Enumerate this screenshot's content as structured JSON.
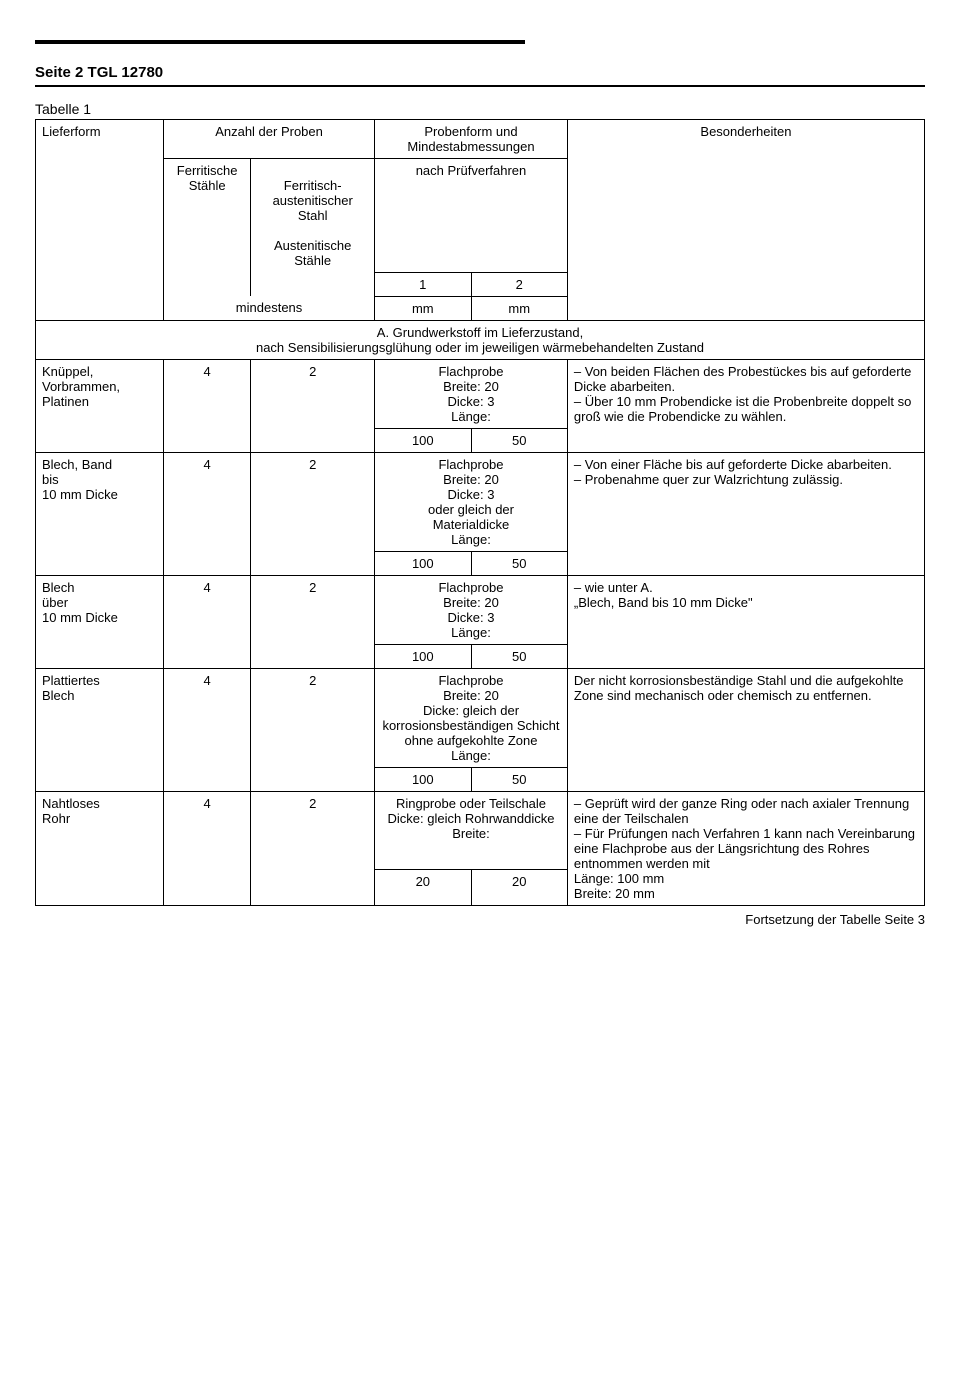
{
  "header": "Seite 2 TGL 12780",
  "table_title": "Tabelle 1",
  "columns": {
    "lieferform": "Lieferform",
    "anzahl": "Anzahl der Proben",
    "probenform": "Probenform und Mindestabmessungen",
    "besonderheiten": "Besonderheiten"
  },
  "subheader": {
    "ferritische": "Ferritische Stähle",
    "ferr_aust": "Ferritisch-austenitischer Stahl",
    "aust": "Austenitische Stähle",
    "mindestens": "mindestens",
    "nach_prufverfahren": "nach Prüfverfahren",
    "v1": "1",
    "v2": "2",
    "mm1": "mm",
    "mm2": "mm"
  },
  "section_a": "A. Grundwerkstoff im Lieferzustand,\nnach Sensibilisierungsglühung oder im jeweiligen wärmebehandelten Zustand",
  "rows": [
    {
      "lieferform": "Knüppel,\nVorbrammen,\nPlatinen",
      "a1": "4",
      "a2": "2",
      "probe_top": "Flachprobe\nBreite: 20\nDicke: 3\nLänge:",
      "p1": "100",
      "p2": "50",
      "bes": "– Von beiden Flächen des Probestückes bis auf geforderte Dicke abarbeiten.\n– Über 10 mm Probendicke ist die Probenbreite doppelt so groß wie die Probendicke zu wählen."
    },
    {
      "lieferform": "Blech, Band\nbis\n10 mm Dicke",
      "a1": "4",
      "a2": "2",
      "probe_top": "Flachprobe\nBreite: 20\nDicke: 3\noder gleich der\nMaterialdicke\nLänge:",
      "p1": "100",
      "p2": "50",
      "bes": "– Von einer Fläche bis auf geforderte Dicke abarbeiten.\n– Probenahme quer zur Walzrichtung zulässig."
    },
    {
      "lieferform": "Blech\nüber\n10 mm Dicke",
      "a1": "4",
      "a2": "2",
      "probe_top": "Flachprobe\nBreite: 20\nDicke: 3\nLänge:",
      "p1": "100",
      "p2": "50",
      "bes": "– wie unter A.\n„Blech, Band bis 10 mm Dicke\""
    },
    {
      "lieferform": "Plattiertes\nBlech",
      "a1": "4",
      "a2": "2",
      "probe_top": "Flachprobe\nBreite: 20\nDicke: gleich der korrosionsbeständigen Schicht\nohne aufgekohlte Zone\nLänge:",
      "p1": "100",
      "p2": "50",
      "bes": "Der nicht korrosionsbeständige Stahl und die aufgekohlte Zone sind mechanisch oder chemisch zu entfernen."
    },
    {
      "lieferform": "Nahtloses\nRohr",
      "a1": "4",
      "a2": "2",
      "probe_top": "Ringprobe oder Teilschale\nDicke: gleich Rohrwanddicke\nBreite:",
      "p1": "20",
      "p2": "20",
      "bes": "– Geprüft wird der ganze Ring oder nach axialer Trennung eine der Teilschalen\n– Für Prüfungen nach Verfahren 1 kann nach Vereinbarung eine Flachprobe aus der Längsrichtung des Rohres entnommen werden mit\nLänge: 100 mm\nBreite: 20 mm"
    }
  ],
  "footer": "Fortsetzung der Tabelle Seite 3"
}
